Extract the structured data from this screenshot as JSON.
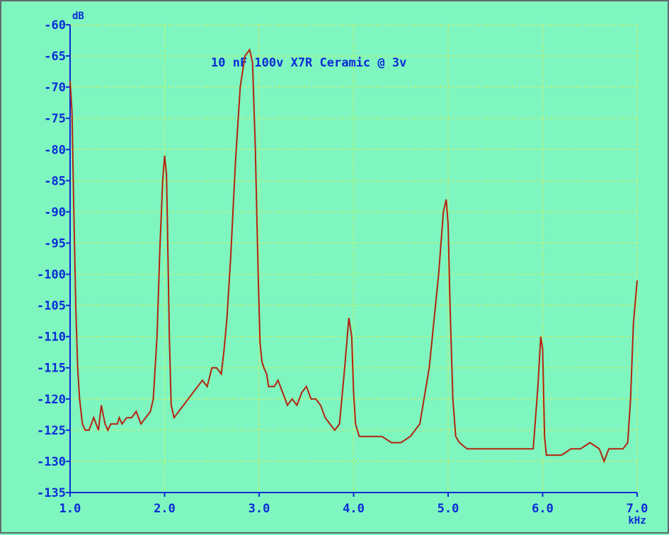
{
  "chart_data": {
    "type": "line",
    "title": "10 nF 100v X7R Ceramic @ 3v",
    "x_unit": "kHz",
    "y_unit": "dB",
    "xlim": [
      1.0,
      7.0
    ],
    "ylim": [
      -135,
      -60
    ],
    "x_ticks": [
      "1.0",
      "2.0",
      "3.0",
      "4.0",
      "5.0",
      "6.0",
      "7.0"
    ],
    "y_ticks": [
      "-60",
      "-65",
      "-70",
      "-75",
      "-80",
      "-85",
      "-90",
      "-95",
      "-100",
      "-105",
      "-110",
      "-115",
      "-120",
      "-125",
      "-130",
      "-135"
    ],
    "grid": true,
    "colors": {
      "background": "#7ff5bf",
      "grid": "#e8f04a",
      "axis": "#0b2bd6",
      "trace": "#b32410"
    },
    "series": [
      {
        "x": [
          1.0,
          1.02,
          1.04,
          1.06,
          1.08,
          1.1,
          1.13,
          1.16,
          1.2,
          1.25,
          1.3,
          1.33,
          1.37,
          1.4,
          1.43,
          1.46,
          1.5,
          1.52,
          1.55,
          1.6,
          1.65,
          1.7,
          1.75,
          1.8,
          1.85,
          1.88,
          1.92,
          1.95,
          1.98,
          2.0,
          2.02,
          2.03,
          2.05,
          2.07,
          2.1,
          2.15,
          2.2,
          2.25,
          2.3,
          2.35,
          2.4,
          2.45,
          2.5,
          2.55,
          2.6,
          2.63,
          2.66,
          2.7,
          2.75,
          2.8,
          2.85,
          2.9,
          2.93,
          2.96,
          2.99,
          3.01,
          3.03,
          3.05,
          3.08,
          3.1,
          3.13,
          3.16,
          3.2,
          3.25,
          3.3,
          3.35,
          3.4,
          3.45,
          3.5,
          3.55,
          3.6,
          3.65,
          3.7,
          3.75,
          3.8,
          3.85,
          3.9,
          3.95,
          3.98,
          4.0,
          4.02,
          4.04,
          4.06,
          4.1,
          4.2,
          4.3,
          4.4,
          4.5,
          4.6,
          4.7,
          4.8,
          4.9,
          4.95,
          4.98,
          5.0,
          5.02,
          5.05,
          5.08,
          5.12,
          5.2,
          5.3,
          5.4,
          5.5,
          5.6,
          5.7,
          5.8,
          5.9,
          5.95,
          5.98,
          6.0,
          6.02,
          6.04,
          6.06,
          6.1,
          6.2,
          6.3,
          6.4,
          6.5,
          6.6,
          6.65,
          6.7,
          6.8,
          6.85,
          6.9,
          6.93,
          6.96,
          7.0
        ],
        "y": [
          -69,
          -74,
          -90,
          -105,
          -115,
          -120,
          -124,
          -125,
          -125,
          -123,
          -125,
          -121,
          -124,
          -125,
          -124,
          -124,
          -124,
          -123,
          -124,
          -123,
          -123,
          -122,
          -124,
          -123,
          -122,
          -120,
          -110,
          -96,
          -85,
          -81,
          -84,
          -92,
          -110,
          -121,
          -123,
          -122,
          -121,
          -120,
          -119,
          -118,
          -117,
          -118,
          -115,
          -115,
          -116,
          -112,
          -107,
          -97,
          -82,
          -70,
          -65,
          -64,
          -66,
          -80,
          -100,
          -111,
          -114,
          -115,
          -116,
          -118,
          -118,
          -118,
          -117,
          -119,
          -121,
          -120,
          -121,
          -119,
          -118,
          -120,
          -120,
          -121,
          -123,
          -124,
          -125,
          -124,
          -116,
          -107,
          -110,
          -119,
          -124,
          -125,
          -126,
          -126,
          -126,
          -126,
          -127,
          -127,
          -126,
          -124,
          -115,
          -100,
          -90,
          -88,
          -92,
          -105,
          -120,
          -126,
          -127,
          -128,
          -128,
          -128,
          -128,
          -128,
          -128,
          -128,
          -128,
          -118,
          -110,
          -112,
          -126,
          -129,
          -129,
          -129,
          -129,
          -128,
          -128,
          -127,
          -128,
          -130,
          -128,
          -128,
          -128,
          -127,
          -120,
          -108,
          -101
        ],
        "comment_free": true
      }
    ]
  }
}
